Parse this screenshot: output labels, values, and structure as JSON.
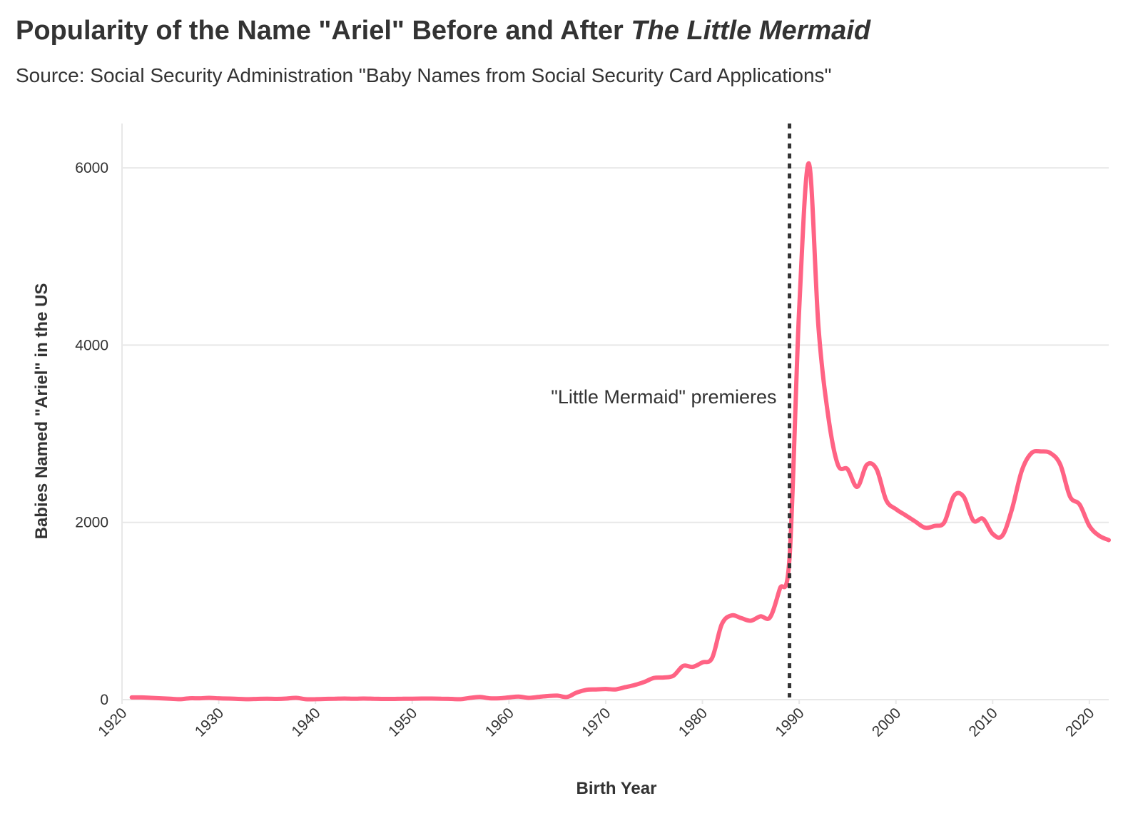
{
  "chart_data": {
    "type": "line",
    "title_main": "Popularity of the Name \"Ariel\" Before and After ",
    "title_emphasis": "The Little Mermaid",
    "subtitle": "Source: Social Security Administration \"Baby Names from Social Security Card Applications\"",
    "xlabel": "Birth Year",
    "ylabel": "Babies Named \"Ariel\" in the US",
    "xlim": [
      1920,
      2022
    ],
    "ylim": [
      0,
      6500
    ],
    "x_ticks": [
      "1920",
      "1930",
      "1940",
      "1950",
      "1960",
      "1970",
      "1980",
      "1990",
      "2000",
      "2010",
      "2020"
    ],
    "y_ticks": [
      "0",
      "2000",
      "4000",
      "6000"
    ],
    "grid": true,
    "line_color": "#ff6384",
    "annotation": {
      "x": 1989,
      "label": "\"Little Mermaid\" premieres"
    },
    "series": [
      {
        "x": [
          1921,
          1922,
          1923,
          1924,
          1925,
          1926,
          1927,
          1928,
          1929,
          1930,
          1931,
          1932,
          1933,
          1934,
          1935,
          1936,
          1937,
          1938,
          1939,
          1940,
          1941,
          1942,
          1943,
          1944,
          1945,
          1946,
          1947,
          1948,
          1949,
          1950,
          1951,
          1952,
          1953,
          1954,
          1955,
          1956,
          1957,
          1958,
          1959,
          1960,
          1961,
          1962,
          1963,
          1964,
          1965,
          1966,
          1967,
          1968,
          1969,
          1970,
          1971,
          1972,
          1973,
          1974,
          1975,
          1976,
          1977,
          1978,
          1979,
          1980,
          1981,
          1982,
          1983,
          1984,
          1985,
          1986,
          1987,
          1988,
          1989,
          1990,
          1991,
          1992,
          1993,
          1994,
          1995,
          1996,
          1997,
          1998,
          1999,
          2000,
          2001,
          2002,
          2003,
          2004,
          2005,
          2006,
          2007,
          2008,
          2009,
          2010,
          2011,
          2012,
          2013,
          2014,
          2015,
          2016,
          2017,
          2018,
          2019,
          2020,
          2021,
          2022
        ],
        "values": [
          25,
          25,
          20,
          15,
          10,
          5,
          15,
          15,
          20,
          15,
          12,
          8,
          5,
          8,
          10,
          8,
          12,
          20,
          5,
          5,
          8,
          10,
          12,
          10,
          12,
          10,
          8,
          8,
          10,
          10,
          12,
          12,
          10,
          8,
          5,
          20,
          30,
          15,
          15,
          25,
          35,
          20,
          30,
          40,
          45,
          30,
          80,
          110,
          115,
          120,
          115,
          140,
          165,
          200,
          245,
          250,
          270,
          380,
          370,
          420,
          470,
          850,
          950,
          920,
          890,
          940,
          930,
          1250,
          1600,
          4400,
          6050,
          4200,
          3200,
          2650,
          2600,
          2400,
          2650,
          2600,
          2250,
          2150,
          2080,
          2010,
          1940,
          1960,
          2000,
          2300,
          2290,
          2020,
          2040,
          1870,
          1850,
          2150,
          2580,
          2780,
          2800,
          2780,
          2650,
          2290,
          2200,
          1960,
          1850,
          1800
        ]
      }
    ]
  }
}
